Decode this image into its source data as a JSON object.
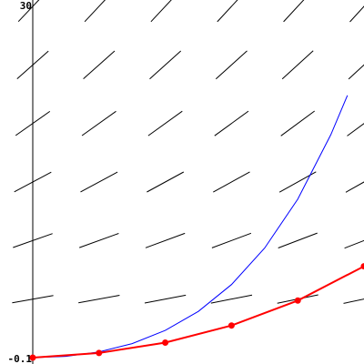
{
  "chart_data": {
    "type": "line",
    "title": "",
    "xlabel": "",
    "ylabel": "",
    "xlim": [
      -0.1,
      1.0
    ],
    "ylim": [
      -0.1,
      30
    ],
    "grid": false,
    "y_tick_labels": {
      "top": "30",
      "bottom": "-0.1"
    },
    "colors": {
      "slope_field": "#000000",
      "exact_curve": "#0000ff",
      "approx_curve": "#ff0000"
    },
    "slope_field": {
      "x_samples": [
        0,
        0.2,
        0.4,
        0.6,
        0.8,
        1.0
      ],
      "y_samples": [
        5,
        10,
        15,
        20,
        25,
        30
      ],
      "slopes": [
        [
          5,
          10,
          15,
          20,
          25,
          30
        ],
        [
          5.2,
          10.2,
          15.2,
          20.2,
          25.2,
          30.2
        ],
        [
          5.4,
          10.4,
          15.4,
          20.4,
          25.4,
          30.4
        ],
        [
          5.6,
          10.6,
          15.6,
          20.6,
          25.6,
          30.6
        ],
        [
          5.8,
          10.8,
          15.8,
          20.8,
          25.8,
          30.8
        ],
        [
          6.0,
          11.0,
          16.0,
          21.0,
          26.0,
          31.0
        ]
      ]
    },
    "series": [
      {
        "x": [
          0,
          0.1,
          0.2,
          0.3,
          0.4,
          0.5,
          0.6,
          0.7,
          0.8,
          0.9,
          0.95
        ],
        "values": [
          0,
          0.11,
          0.49,
          1.2,
          2.32,
          3.95,
          6.24,
          9.36,
          13.53,
          19.05,
          22.4
        ]
      },
      {
        "x": [
          0,
          0.2,
          0.4,
          0.6,
          0.8,
          1.0
        ],
        "values": [
          0,
          0.4,
          1.28,
          2.74,
          4.87,
          7.8
        ]
      }
    ]
  }
}
